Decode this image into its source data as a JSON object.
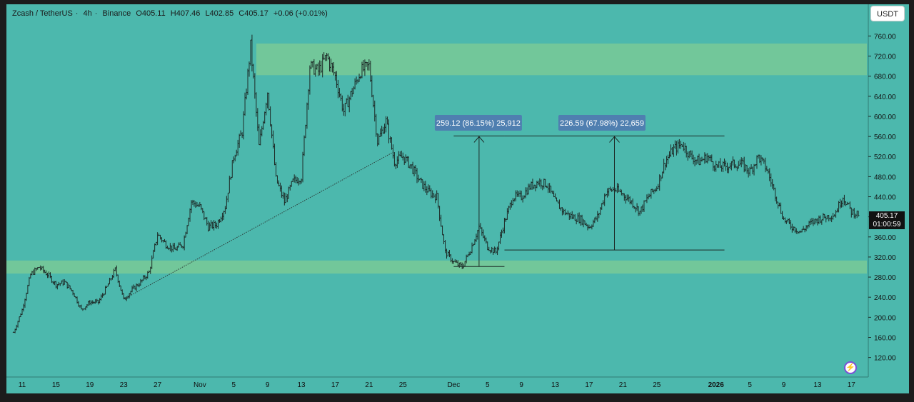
{
  "header": {
    "symbol": "Zcash / TetherUS",
    "interval": "4h",
    "exchange": "Binance",
    "open": "O405.11",
    "high": "H407.46",
    "low": "L402.85",
    "close": "C405.17",
    "change": "+0.06 (+0.01%)",
    "separator": "·"
  },
  "currency_button": "USDT",
  "price_badge": {
    "price": "405.17",
    "countdown": "01:00:59"
  },
  "icons": {
    "lightning": "lightning-icon"
  },
  "colors": {
    "background": "#4cb8ad",
    "zone": "#72c79a",
    "candle": "#1d2a27",
    "measure_label_bg": "#4f7fb0",
    "trendline": "#2c3b38"
  },
  "chart_data": {
    "type": "candlestick",
    "title": "Zcash / TetherUS · 4h · Binance",
    "y_axis": {
      "ticks": [
        "760.00",
        "720.00",
        "680.00",
        "640.00",
        "600.00",
        "560.00",
        "520.00",
        "480.00",
        "440.00",
        "400.00",
        "360.00",
        "320.00",
        "280.00",
        "240.00",
        "200.00",
        "160.00",
        "120.00"
      ],
      "range": [
        85,
        790
      ]
    },
    "x_axis": {
      "ticks": [
        {
          "label": "11",
          "d": 0
        },
        {
          "label": "15",
          "d": 4
        },
        {
          "label": "19",
          "d": 8
        },
        {
          "label": "23",
          "d": 12
        },
        {
          "label": "27",
          "d": 16
        },
        {
          "label": "Nov",
          "d": 21
        },
        {
          "label": "5",
          "d": 25
        },
        {
          "label": "9",
          "d": 29
        },
        {
          "label": "13",
          "d": 33
        },
        {
          "label": "17",
          "d": 37
        },
        {
          "label": "21",
          "d": 41
        },
        {
          "label": "25",
          "d": 45
        },
        {
          "label": "Dec",
          "d": 51
        },
        {
          "label": "5",
          "d": 55
        },
        {
          "label": "9",
          "d": 59
        },
        {
          "label": "13",
          "d": 63
        },
        {
          "label": "17",
          "d": 67
        },
        {
          "label": "21",
          "d": 71
        },
        {
          "label": "25",
          "d": 75
        },
        {
          "label": "2026",
          "d": 82,
          "bold": true
        },
        {
          "label": "5",
          "d": 86
        },
        {
          "label": "9",
          "d": 90
        },
        {
          "label": "13",
          "d": 94
        },
        {
          "label": "17",
          "d": 98
        }
      ]
    },
    "price_path": [
      [
        -1,
        170
      ],
      [
        0,
        215
      ],
      [
        1,
        285
      ],
      [
        2,
        300
      ],
      [
        3,
        285
      ],
      [
        4,
        265
      ],
      [
        5,
        270
      ],
      [
        6,
        250
      ],
      [
        7,
        215
      ],
      [
        8,
        230
      ],
      [
        9,
        230
      ],
      [
        10,
        260
      ],
      [
        11,
        295
      ],
      [
        12,
        235
      ],
      [
        13,
        255
      ],
      [
        14,
        270
      ],
      [
        15,
        290
      ],
      [
        16,
        365
      ],
      [
        17,
        345
      ],
      [
        18,
        335
      ],
      [
        19,
        345
      ],
      [
        20,
        430
      ],
      [
        21,
        420
      ],
      [
        22,
        380
      ],
      [
        23,
        385
      ],
      [
        24,
        420
      ],
      [
        25,
        520
      ],
      [
        26,
        570
      ],
      [
        27,
        740
      ],
      [
        28,
        540
      ],
      [
        29,
        650
      ],
      [
        30,
        475
      ],
      [
        31,
        430
      ],
      [
        32,
        470
      ],
      [
        33,
        480
      ],
      [
        34,
        700
      ],
      [
        35,
        690
      ],
      [
        36,
        720
      ],
      [
        37,
        680
      ],
      [
        38,
        610
      ],
      [
        39,
        650
      ],
      [
        40,
        690
      ],
      [
        41,
        700
      ],
      [
        42,
        550
      ],
      [
        43,
        590
      ],
      [
        44,
        510
      ],
      [
        45,
        520
      ],
      [
        46,
        500
      ],
      [
        47,
        470
      ],
      [
        48,
        450
      ],
      [
        49,
        440
      ],
      [
        50,
        330
      ],
      [
        51,
        310
      ],
      [
        52,
        300
      ],
      [
        53,
        335
      ],
      [
        54,
        380
      ],
      [
        55,
        340
      ],
      [
        56,
        330
      ],
      [
        57,
        390
      ],
      [
        58,
        440
      ],
      [
        59,
        440
      ],
      [
        60,
        460
      ],
      [
        61,
        470
      ],
      [
        62,
        465
      ],
      [
        63,
        430
      ],
      [
        64,
        410
      ],
      [
        65,
        400
      ],
      [
        66,
        395
      ],
      [
        67,
        380
      ],
      [
        68,
        400
      ],
      [
        69,
        450
      ],
      [
        70,
        455
      ],
      [
        71,
        445
      ],
      [
        72,
        430
      ],
      [
        73,
        410
      ],
      [
        74,
        440
      ],
      [
        75,
        460
      ],
      [
        76,
        510
      ],
      [
        77,
        535
      ],
      [
        78,
        545
      ],
      [
        79,
        520
      ],
      [
        80,
        510
      ],
      [
        81,
        520
      ],
      [
        82,
        500
      ],
      [
        83,
        500
      ],
      [
        84,
        505
      ],
      [
        85,
        505
      ],
      [
        86,
        490
      ],
      [
        87,
        520
      ],
      [
        88,
        495
      ],
      [
        89,
        445
      ],
      [
        90,
        395
      ],
      [
        91,
        380
      ],
      [
        92,
        370
      ],
      [
        93,
        385
      ],
      [
        94,
        395
      ],
      [
        95,
        400
      ],
      [
        96,
        405
      ],
      [
        97,
        440
      ],
      [
        98,
        410
      ],
      [
        99,
        405
      ]
    ],
    "zones": [
      {
        "from": 682,
        "to": 745
      },
      {
        "from": 287,
        "to": 313
      }
    ],
    "trendline": {
      "from": {
        "d": 12,
        "price": 236
      },
      "to": {
        "d": 44,
        "price": 530
      }
    },
    "measurements": [
      {
        "label": "259.12 (86.15%) 25,912",
        "d_start": 51,
        "d_end": 57,
        "price_low": 301,
        "price_high": 561
      },
      {
        "label": "226.59 (67.98%) 22,659",
        "d_start": 57,
        "d_end": 83,
        "price_low": 334,
        "price_high": 561
      }
    ]
  }
}
